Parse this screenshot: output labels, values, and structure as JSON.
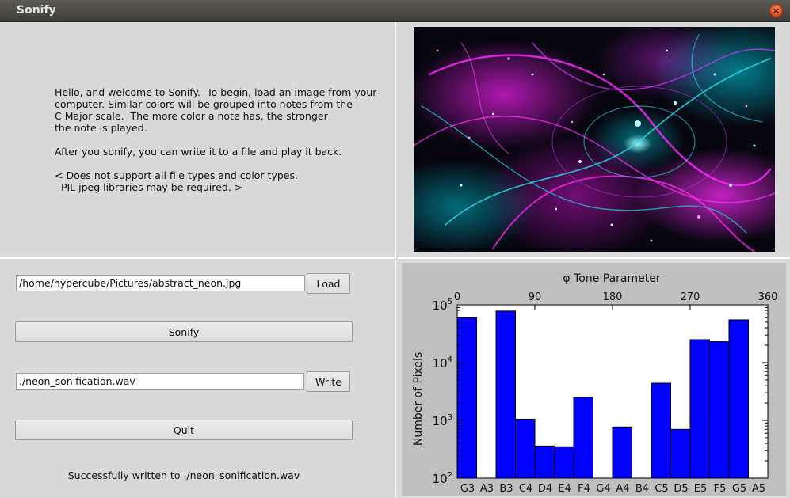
{
  "window": {
    "title": "Sonify",
    "close_glyph": "×"
  },
  "welcome": {
    "lines": [
      "Hello, and welcome to Sonify.  To begin, load an image from your",
      "computer. Similar colors will be grouped into notes from the",
      "C Major scale.  The more color a note has, the stronger",
      "the note is played.",
      "",
      "After you sonify, you can write it to a file and play it back.",
      "",
      "< Does not support all file types and color types.",
      "  PIL jpeg libraries may be required. >"
    ]
  },
  "image_preview": {
    "semantic": "neon-abstract-image",
    "colors": [
      "#ff29ff",
      "#23d3e0",
      "#07060f"
    ]
  },
  "controls": {
    "load_path": "/home/hypercube/Pictures/abstract_neon.jpg",
    "load_label": "Load",
    "sonify_label": "Sonify",
    "write_path": "./neon_sonification.wav",
    "write_label": "Write",
    "quit_label": "Quit",
    "status": "Successfully written to ./neon_sonification.wav"
  },
  "chart_data": {
    "type": "bar",
    "title": "",
    "top_axis_label": "φ Tone Parameter",
    "top_ticks": [
      "0",
      "90",
      "180",
      "270",
      "360"
    ],
    "top_tick_values": [
      0,
      90,
      180,
      270,
      360
    ],
    "top_range": [
      0,
      360
    ],
    "ylabel": "Number of Pixels",
    "yscale": "log",
    "ylim": [
      100,
      100000
    ],
    "y_ticks": [
      {
        "base": "10",
        "exp": "2",
        "value": 100
      },
      {
        "base": "10",
        "exp": "3",
        "value": 1000
      },
      {
        "base": "10",
        "exp": "4",
        "value": 10000
      },
      {
        "base": "10",
        "exp": "5",
        "value": 100000
      }
    ],
    "categories": [
      "G3",
      "A3",
      "B3",
      "C4",
      "D4",
      "E4",
      "F4",
      "G4",
      "A4",
      "B4",
      "C5",
      "D5",
      "E5",
      "F5",
      "G5",
      "A5"
    ],
    "values": [
      60000,
      0,
      78000,
      1050,
      360,
      350,
      2500,
      0,
      770,
      0,
      4400,
      700,
      25000,
      23000,
      55000,
      0
    ],
    "bar_color": "#0000ff",
    "grid": false
  }
}
